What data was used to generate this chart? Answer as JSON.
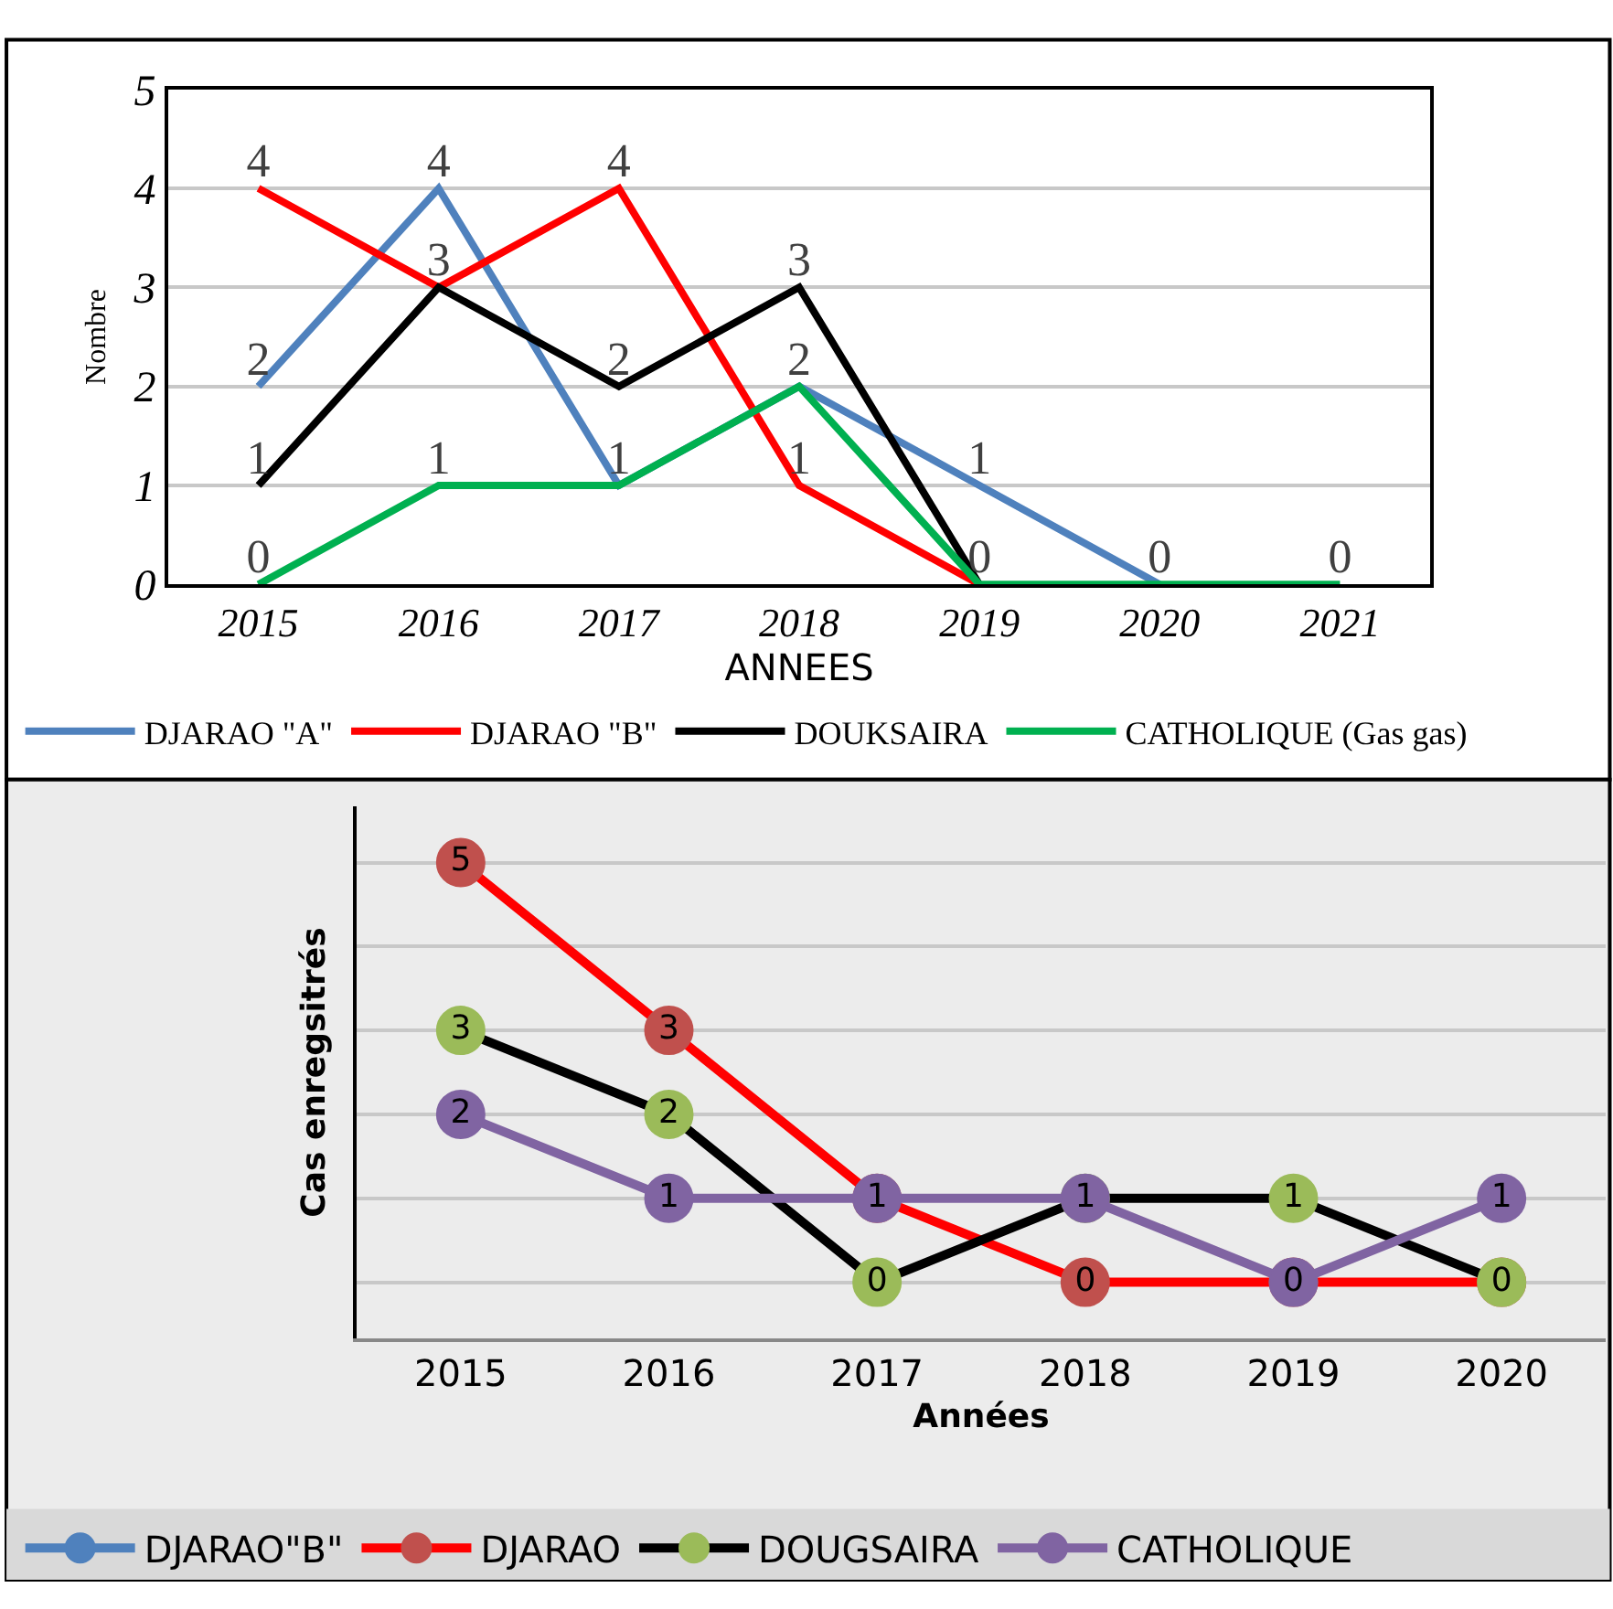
{
  "chart_data": [
    {
      "type": "line",
      "xlabel": "ANNEES",
      "ylabel": "Nombre",
      "categories": [
        "2015",
        "2016",
        "2017",
        "2018",
        "2019",
        "2020",
        "2021"
      ],
      "ylim": [
        0,
        5
      ],
      "yticks": [
        0,
        1,
        2,
        3,
        4,
        5
      ],
      "grid": "y",
      "legend": "bottom",
      "marker": "none",
      "series": [
        {
          "name": "DJARAO \"A\"",
          "color": "#4f81bd",
          "values": [
            2,
            4,
            1,
            2,
            1,
            0,
            null
          ],
          "value_labels": [
            "2",
            "4",
            "1",
            "2",
            "1",
            "0",
            null
          ]
        },
        {
          "name": "DJARAO \"B\"",
          "color": "#ff0000",
          "values": [
            4,
            3,
            4,
            1,
            0,
            null,
            null
          ],
          "value_labels": [
            "4",
            null,
            "4",
            "1",
            null,
            null,
            null
          ]
        },
        {
          "name": "DOUKSAIRA",
          "color": "#000000",
          "values": [
            1,
            3,
            2,
            3,
            0,
            null,
            null
          ],
          "value_labels": [
            "1",
            "3",
            "2",
            "3",
            null,
            null,
            null
          ]
        },
        {
          "name": "CATHOLIQUE (Gas gas)",
          "color": "#00b050",
          "values": [
            0,
            1,
            1,
            2,
            0,
            0,
            0
          ],
          "value_labels": [
            "0",
            "1",
            null,
            null,
            "0",
            null,
            "0"
          ]
        }
      ]
    },
    {
      "type": "line",
      "xlabel": "Années",
      "ylabel": "Cas enregsitrés",
      "categories": [
        "2015",
        "2016",
        "2017",
        "2018",
        "2019",
        "2020"
      ],
      "tick_labels": "x",
      "grid": "y",
      "legend": "bottom",
      "marker": "circle",
      "data_labels": true,
      "series": [
        {
          "name": "DJARAO\"B\"",
          "color": "#4f81bd",
          "values": [
            null,
            null,
            null,
            null,
            null,
            null
          ]
        },
        {
          "name": "DJARAO",
          "color": "#ff0000",
          "colors": [
            "#c0504d",
            "#c0504d",
            "#c0504d",
            "#c0504d",
            "#c0504d",
            "#c0504d"
          ],
          "values": [
            5,
            3,
            1,
            0,
            0,
            0
          ],
          "value_labels": [
            "5",
            "3",
            null,
            "0",
            null,
            null
          ]
        },
        {
          "name": "DOUGSAIRA",
          "color": "#000000",
          "colors": [
            "#9bbb59",
            "#9bbb59",
            "#9bbb59",
            "#9bbb59",
            "#9bbb59",
            "#9bbb59"
          ],
          "values": [
            3,
            2,
            0,
            1,
            1,
            0
          ],
          "value_labels": [
            "3",
            "2",
            "0",
            null,
            "1",
            "0"
          ]
        },
        {
          "name": "CATHOLIQUE",
          "color": "#8064a2",
          "values": [
            2,
            1,
            1,
            1,
            0,
            1
          ]
        }
      ]
    }
  ]
}
